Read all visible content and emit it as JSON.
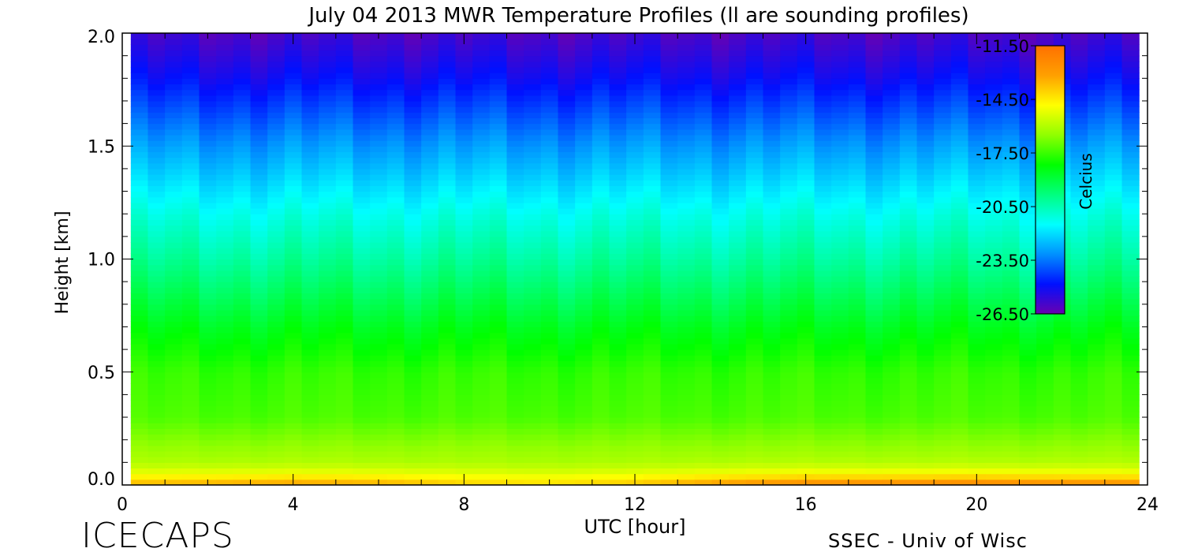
{
  "chart_data": {
    "type": "heatmap",
    "title": "July 04 2013 MWR Temperature Profiles (ll are sounding profiles)",
    "xlabel": "UTC [hour]",
    "ylabel": "Height [km]",
    "xlim": [
      0,
      24
    ],
    "ylim": [
      0,
      2.0
    ],
    "data_extent_x": [
      0.2,
      23.8
    ],
    "x_ticks": [
      "0",
      "4",
      "8",
      "12",
      "16",
      "20",
      "24"
    ],
    "x_tick_values": [
      0,
      4,
      8,
      12,
      16,
      20,
      24
    ],
    "y_ticks": [
      "0.0",
      "0.5",
      "1.0",
      "1.5",
      "2.0"
    ],
    "y_tick_values": [
      0,
      0.5,
      1.0,
      1.5,
      2.0
    ],
    "colorbar": {
      "label": "Celcius",
      "range": [
        -26.5,
        -11.5
      ],
      "ticks": [
        "-11.50",
        "-14.50",
        "-17.50",
        "-20.50",
        "-23.50",
        "-26.50"
      ],
      "tick_values": [
        -11.5,
        -14.5,
        -17.5,
        -20.5,
        -23.5,
        -26.5
      ],
      "colors": [
        "#6a00b0",
        "#0010ff",
        "#0090ff",
        "#00ffff",
        "#00ff80",
        "#00ff00",
        "#90ff00",
        "#ffff00",
        "#ffa000",
        "#ff7000"
      ]
    },
    "profile": {
      "heights_km": [
        0,
        0.05,
        0.1,
        0.3,
        0.5,
        0.7,
        1.0,
        1.2,
        1.5,
        1.8,
        2.0
      ],
      "temperature_c": [
        -13.0,
        -15.0,
        -16.0,
        -17.3,
        -17.6,
        -18.5,
        -20.2,
        -21.2,
        -23.0,
        -25.0,
        -26.0
      ]
    },
    "surface_temperature_by_hour": [
      {
        "x": 0,
        "t": -13.5
      },
      {
        "x": 2,
        "t": -13.3
      },
      {
        "x": 4,
        "t": -13.0
      },
      {
        "x": 6,
        "t": -13.3
      },
      {
        "x": 8,
        "t": -14.0
      },
      {
        "x": 10,
        "t": -14.3
      },
      {
        "x": 12,
        "t": -13.8
      },
      {
        "x": 14,
        "t": -12.8
      },
      {
        "x": 16,
        "t": -12.2
      },
      {
        "x": 18,
        "t": -12.2
      },
      {
        "x": 20,
        "t": -12.0
      },
      {
        "x": 22,
        "t": -12.3
      },
      {
        "x": 24,
        "t": -12.5
      }
    ]
  },
  "footer": {
    "logo": "ICECAPS",
    "credit": "SSEC - Univ of Wisc"
  }
}
